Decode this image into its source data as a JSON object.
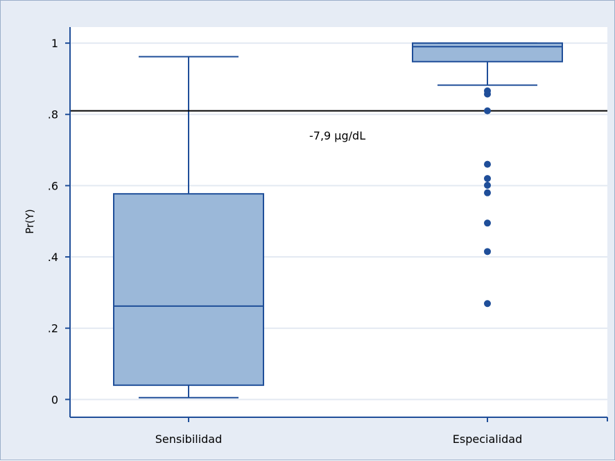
{
  "chart_data": {
    "type": "boxplot",
    "ylabel": "Pr(Y)",
    "ylim": [
      -0.05,
      1.045
    ],
    "y_ticks": [
      {
        "value": 0,
        "label": "0"
      },
      {
        "value": 0.2,
        "label": ".2"
      },
      {
        "value": 0.4,
        "label": ".4"
      },
      {
        "value": 0.6,
        "label": ".6"
      },
      {
        "value": 0.8,
        "label": ".8"
      },
      {
        "value": 1,
        "label": "1"
      }
    ],
    "grid": true,
    "reference_line": {
      "y": 0.81
    },
    "annotation": "-7,9 µg/dL",
    "categories": [
      "Sensibilidad",
      "Especialidad"
    ],
    "boxes": [
      {
        "name": "Sensibilidad",
        "whisker_low": 0.005,
        "q1": 0.04,
        "median": 0.262,
        "q3": 0.577,
        "whisker_high": 0.962,
        "outliers": []
      },
      {
        "name": "Especialidad",
        "whisker_low": 0.882,
        "q1": 0.948,
        "median": 0.99,
        "q3": 1.0,
        "whisker_high": 1.0,
        "outliers": [
          0.866,
          0.857,
          0.81,
          0.66,
          0.62,
          0.601,
          0.58,
          0.495,
          0.415,
          0.269
        ]
      }
    ],
    "colors": {
      "box_fill": "#9bb8d9",
      "box_stroke": "#1f4e99",
      "outlier": "#1f4e99",
      "grid": "#ffffff",
      "plot_bg": "#ffffff",
      "panel_bg": "#e6ecf5",
      "axis": "#1f4e99"
    }
  }
}
